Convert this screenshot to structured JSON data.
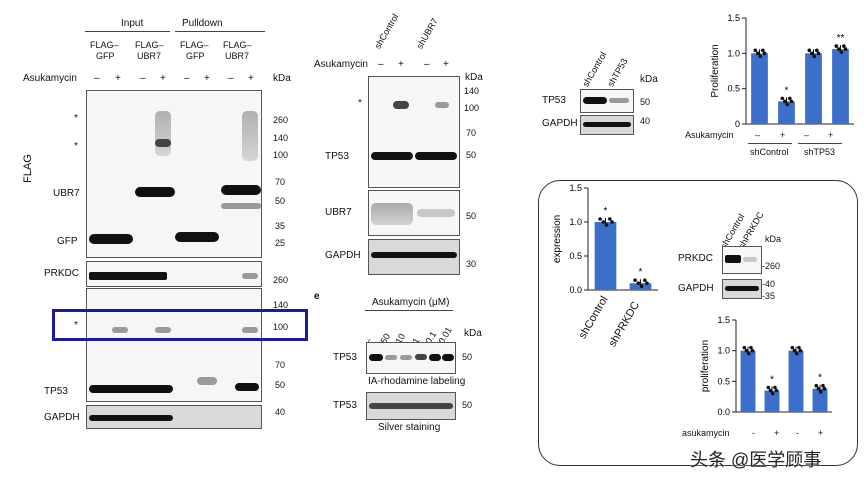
{
  "panel_a": {
    "header_input": "Input",
    "header_pulldown": "Pulldown",
    "lanes": [
      "FLAG–\nGFP",
      "FLAG–\nUBR7",
      "FLAG–\nGFP",
      "FLAG–\nUBR7"
    ],
    "lane_1": "FLAG–",
    "lane_1b": "GFP",
    "lane_2": "FLAG–",
    "lane_2b": "UBR7",
    "treatment": "Asukamycin",
    "signs": [
      "–",
      "+",
      "–",
      "+",
      "–",
      "+",
      "–",
      "+"
    ],
    "kda": "kDa",
    "rows": {
      "flag": "FLAG",
      "ubr7": "UBR7",
      "gfp": "GFP",
      "prkdc": "PRKDC",
      "tp53": "TP53",
      "gapdh": "GAPDH",
      "star": "*"
    },
    "markers": [
      "260",
      "140",
      "100",
      "70",
      "50",
      "35",
      "25",
      "260",
      "140",
      "100",
      "70",
      "50",
      "40"
    ]
  },
  "panel_b": {
    "cols": [
      "shControl",
      "shUBR7"
    ],
    "treatment": "Asukamycin",
    "signs": [
      "–",
      "+",
      "–",
      "+"
    ],
    "kda": "kDa",
    "star": "*",
    "rows": {
      "tp53": "TP53",
      "ubr7": "UBR7",
      "gapdh": "GAPDH"
    },
    "markers": [
      "140",
      "100",
      "70",
      "50",
      "50",
      "30"
    ]
  },
  "panel_e": {
    "label": "e",
    "title": "Asukamycin (μM)",
    "concs": [
      "–",
      "50",
      "10",
      "1",
      "0.1",
      "0.01"
    ],
    "kda": "kDa",
    "row1": "TP53",
    "caption1": "IA-rhodamine labeling",
    "row2": "TP53",
    "caption2": "Silver staining",
    "markers": [
      "50",
      "50"
    ]
  },
  "panel_c": {
    "cols": [
      "shControl",
      "shTP53"
    ],
    "kda": "kDa",
    "rows": {
      "tp53": "TP53",
      "gapdh": "GAPDH"
    },
    "markers": [
      "50",
      "40"
    ]
  },
  "panel_prkdc": {
    "cols": [
      "shControl",
      "shPRKDC"
    ],
    "kda": "kDa",
    "rows": {
      "prkdc": "PRKDC",
      "gapdh": "GAPDH"
    },
    "markers": [
      "-260",
      "-40",
      "-35"
    ]
  },
  "chart_data": [
    {
      "type": "bar",
      "ylabel": "Proliferation",
      "categories": [
        "shControl –",
        "shControl +",
        "shTP53 –",
        "shTP53 +"
      ],
      "values": [
        1.0,
        0.32,
        1.0,
        1.06
      ],
      "ylim": [
        0,
        1.5
      ],
      "yticks": [
        "0",
        "0.5",
        "1.0",
        "1.5"
      ],
      "treatment": "Asukamycin",
      "signs": [
        "–",
        "+",
        "–",
        "+"
      ],
      "groups": [
        "shControl",
        "shTP53"
      ],
      "annotations": [
        "*",
        "**"
      ],
      "bar_color": "#3b6fc9"
    },
    {
      "type": "bar",
      "ylabel": "expression",
      "categories": [
        "shControl",
        "shPRKDC"
      ],
      "values": [
        1.0,
        0.1
      ],
      "ylim": [
        0,
        1.5
      ],
      "yticks": [
        "0.0",
        "0.5",
        "1.0",
        "1.5"
      ],
      "annotations": [
        "*",
        "*"
      ],
      "bar_color": "#3b6fc9"
    },
    {
      "type": "bar",
      "ylabel": "proliferation",
      "categories": [
        "–",
        "+",
        "–",
        "+"
      ],
      "values": [
        1.0,
        0.35,
        1.0,
        0.38
      ],
      "ylim": [
        0,
        1.5
      ],
      "yticks": [
        "0.0",
        "0.5",
        "1.0",
        "1.5"
      ],
      "treatment": "asukamycin",
      "signs": [
        "-",
        "+",
        "-",
        "+"
      ],
      "annotations": [
        "*",
        "*"
      ],
      "bar_color": "#3b6fc9"
    }
  ],
  "watermark": "头条 @医学顾事",
  "colors": {
    "bar": "#3b6fc9",
    "highlight": "#1a1a9c"
  }
}
